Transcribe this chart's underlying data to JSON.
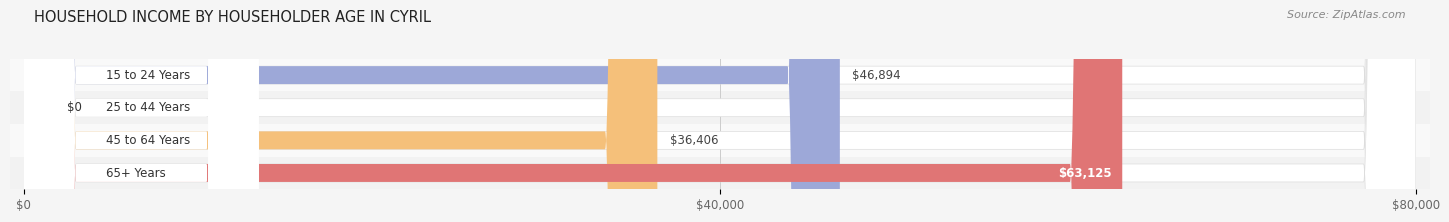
{
  "title": "HOUSEHOLD INCOME BY HOUSEHOLDER AGE IN CYRIL",
  "source": "Source: ZipAtlas.com",
  "categories": [
    "15 to 24 Years",
    "25 to 44 Years",
    "45 to 64 Years",
    "65+ Years"
  ],
  "values": [
    46894,
    0,
    36406,
    63125
  ],
  "bar_colors": [
    "#9da8d8",
    "#e8a0b4",
    "#f5c07a",
    "#e07575"
  ],
  "xlim": [
    0,
    80000
  ],
  "xticks": [
    0,
    40000,
    80000
  ],
  "xtick_labels": [
    "$0",
    "$40,000",
    "$80,000"
  ],
  "background_color": "#f5f5f5",
  "bar_bg_color": "#ffffff",
  "stripe_color": "#eeeeee",
  "title_fontsize": 10.5,
  "source_fontsize": 8,
  "label_fontsize": 8.5,
  "category_fontsize": 8.5
}
